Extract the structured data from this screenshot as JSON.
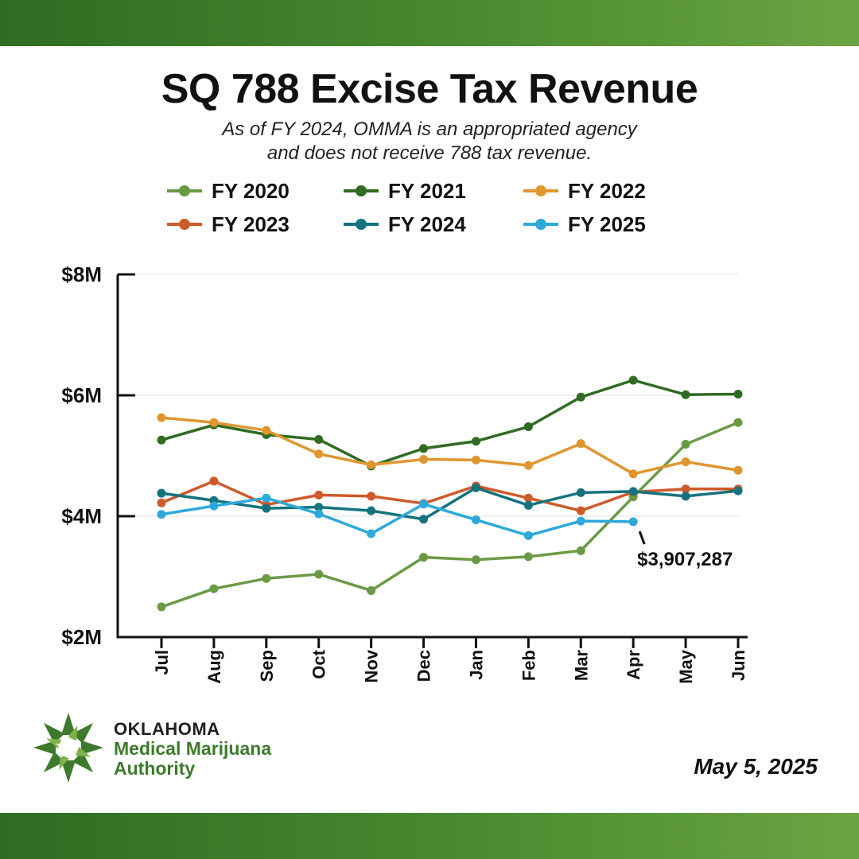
{
  "header": {
    "title": "SQ 788 Excise Tax Revenue",
    "subtitle_line1": "As of FY 2024, OMMA is an appropriated agency",
    "subtitle_line2": "and does not receive 788 tax revenue."
  },
  "footer": {
    "org_line1": "OKLAHOMA",
    "org_line2": "Medical Marijuana",
    "org_line3": "Authority",
    "date": "May 5, 2025"
  },
  "colors": {
    "band": "#3f7d2b",
    "axis": "#111111",
    "grid": "#e3e3e3"
  },
  "chart_data": {
    "type": "line",
    "title": "SQ 788 Excise Tax Revenue",
    "xlabel": "",
    "ylabel": "",
    "categories": [
      "Jul",
      "Aug",
      "Sep",
      "Oct",
      "Nov",
      "Dec",
      "Jan",
      "Feb",
      "Mar",
      "Apr",
      "May",
      "Jun"
    ],
    "y_ticks": [
      {
        "value": 2000000,
        "label": "$2M"
      },
      {
        "value": 4000000,
        "label": "$4M"
      },
      {
        "value": 6000000,
        "label": "$6M"
      },
      {
        "value": 8000000,
        "label": "$8M"
      }
    ],
    "ylim": [
      2000000,
      8000000
    ],
    "grid": true,
    "legend_position": "top",
    "series": [
      {
        "name": "FY 2020",
        "color": "#6a9a45",
        "values": [
          2500000,
          2800000,
          2970000,
          3040000,
          2770000,
          3320000,
          3280000,
          3330000,
          3430000,
          4320000,
          5190000,
          5550000
        ]
      },
      {
        "name": "FY 2021",
        "color": "#2f6b22",
        "values": [
          5260000,
          5510000,
          5350000,
          5270000,
          4830000,
          5120000,
          5240000,
          5480000,
          5970000,
          6250000,
          6010000,
          6020000
        ]
      },
      {
        "name": "FY 2022",
        "color": "#e0962f",
        "values": [
          5630000,
          5550000,
          5420000,
          5030000,
          4850000,
          4940000,
          4930000,
          4840000,
          5200000,
          4700000,
          4900000,
          4760000
        ]
      },
      {
        "name": "FY 2023",
        "color": "#cf5a2a",
        "values": [
          4220000,
          4580000,
          4190000,
          4350000,
          4330000,
          4210000,
          4500000,
          4300000,
          4090000,
          4400000,
          4450000,
          4450000
        ]
      },
      {
        "name": "FY 2024",
        "color": "#15737d",
        "values": [
          4380000,
          4260000,
          4130000,
          4150000,
          4090000,
          3950000,
          4470000,
          4180000,
          4390000,
          4410000,
          4330000,
          4420000
        ]
      },
      {
        "name": "FY 2025",
        "color": "#2da9dc",
        "values": [
          4030000,
          4170000,
          4300000,
          4040000,
          3710000,
          4200000,
          3940000,
          3680000,
          3920000,
          3907287,
          null,
          null
        ]
      }
    ],
    "annotations": [
      {
        "text": "$3,907,287",
        "series": "FY 2025",
        "category": "Apr",
        "value": 3907287
      }
    ]
  }
}
